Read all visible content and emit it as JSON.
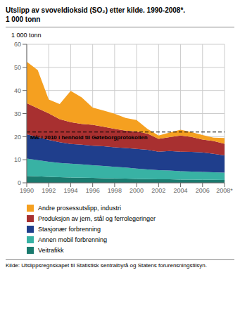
{
  "chart_data": {
    "type": "area",
    "title": "Utslipp av svoveldioksid (SO₂) etter kilde. 1990-2008*.",
    "subtitle": "1 000 tonn",
    "y_label": "1 000 tonn",
    "source": "Kilde:  Utslippsregnskapet til Statistisk sentralbyrå og Statens forurensningstilsyn.",
    "stacked": true,
    "grid": true,
    "x": [
      1990,
      1991,
      1992,
      1993,
      1994,
      1995,
      1996,
      1997,
      1998,
      1999,
      2000,
      2001,
      2002,
      2003,
      2004,
      2005,
      2006,
      2007,
      2008
    ],
    "xlim": [
      1990,
      2008
    ],
    "xticks": [
      1990,
      1992,
      1994,
      1996,
      1998,
      2000,
      2002,
      2004,
      2006,
      {
        "value": 2008,
        "label": "2008*"
      }
    ],
    "ylim": [
      0,
      60
    ],
    "yticks": [
      0,
      10,
      20,
      30,
      40,
      50,
      60
    ],
    "annotations": [
      {
        "text": "Mål i 2010 i henhold til Gøteborgprotokollen",
        "y": 22.0,
        "line_style": "dashed",
        "color": "#000000"
      }
    ],
    "series": [
      {
        "name": "Andre prosessutslipp, industri",
        "color": "#f5a020",
        "values": [
          18.0,
          16.5,
          6.0,
          6.5,
          13.5,
          11.5,
          7.5,
          7.0,
          6.5,
          5.5,
          5.0,
          2.0,
          1.5,
          2.0,
          2.5,
          2.0,
          2.0,
          1.5,
          2.5
        ]
      },
      {
        "name": "Produksjon av jern, stål og ferrolegeringer",
        "color": "#a83030",
        "values": [
          13.5,
          12.5,
          11.5,
          10.0,
          9.5,
          9.0,
          9.0,
          8.5,
          8.0,
          7.5,
          7.5,
          7.0,
          5.5,
          6.0,
          7.0,
          6.5,
          5.5,
          5.5,
          5.0
        ]
      },
      {
        "name": "Stasjonær forbrenning",
        "color": "#1f3e8c",
        "values": [
          10.5,
          10.0,
          9.5,
          9.0,
          8.5,
          8.5,
          8.5,
          8.5,
          8.5,
          8.5,
          8.5,
          8.5,
          8.0,
          8.5,
          8.5,
          8.5,
          8.5,
          8.0,
          7.5
        ]
      },
      {
        "name": "Annen mobil forbrenning",
        "color": "#38b2a4",
        "values": [
          7.5,
          7.0,
          6.5,
          6.2,
          6.0,
          5.8,
          5.5,
          5.3,
          5.0,
          4.8,
          4.5,
          4.2,
          4.0,
          3.8,
          3.6,
          3.5,
          3.4,
          3.3,
          3.2
        ]
      },
      {
        "name": "Veitrafikk",
        "color": "#1a7a6e",
        "values": [
          3.0,
          2.8,
          2.6,
          2.4,
          2.3,
          2.2,
          2.1,
          2.0,
          1.9,
          1.8,
          1.7,
          1.6,
          1.5,
          1.5,
          1.4,
          1.4,
          1.3,
          1.3,
          1.2
        ]
      }
    ]
  }
}
